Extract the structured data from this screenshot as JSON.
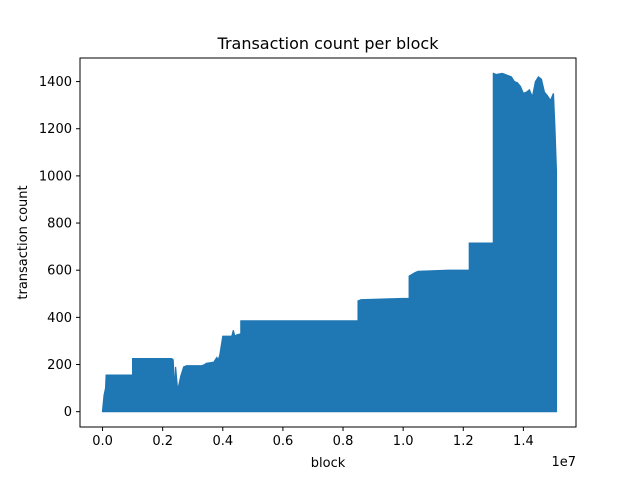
{
  "chart_data": {
    "type": "area",
    "title": "Transaction count per block",
    "xlabel": "block",
    "ylabel": "transaction count",
    "x_offset_text": "1e7",
    "xlim": [
      -0.075,
      1.575
    ],
    "ylim": [
      -65,
      1500
    ],
    "x_ticks": [
      0.0,
      0.2,
      0.4,
      0.6,
      0.8,
      1.0,
      1.2,
      1.4
    ],
    "x_tick_labels": [
      "0.0",
      "0.2",
      "0.4",
      "0.6",
      "0.8",
      "1.0",
      "1.2",
      "1.4"
    ],
    "y_ticks": [
      0,
      200,
      400,
      600,
      800,
      1000,
      1200,
      1400
    ],
    "y_tick_labels": [
      "0",
      "200",
      "400",
      "600",
      "800",
      "1000",
      "1200",
      "1400"
    ],
    "grid": false,
    "legend": "none",
    "series": [
      {
        "color": "#1f77b4",
        "x": [
          0.0,
          0.005,
          0.01,
          0.012,
          0.02,
          0.03,
          0.04,
          0.05,
          0.1,
          0.1,
          0.2,
          0.23,
          0.235,
          0.24,
          0.243,
          0.25,
          0.26,
          0.27,
          0.28,
          0.33,
          0.34,
          0.345,
          0.37,
          0.38,
          0.385,
          0.39,
          0.4,
          0.43,
          0.435,
          0.44,
          0.445,
          0.46,
          0.46,
          0.5,
          0.7,
          0.75,
          0.85,
          0.85,
          0.86,
          1.0,
          1.02,
          1.02,
          1.04,
          1.05,
          1.15,
          1.22,
          1.22,
          1.3,
          1.3,
          1.31,
          1.33,
          1.34,
          1.35,
          1.36,
          1.37,
          1.38,
          1.39,
          1.4,
          1.41,
          1.42,
          1.43,
          1.44,
          1.45,
          1.46,
          1.47,
          1.48,
          1.49,
          1.5,
          1.505,
          1.51,
          1.51
        ],
        "y": [
          5,
          70,
          100,
          155,
          155,
          155,
          155,
          155,
          155,
          225,
          225,
          225,
          220,
          85,
          190,
          90,
          150,
          190,
          195,
          195,
          200,
          205,
          210,
          230,
          220,
          240,
          320,
          320,
          345,
          320,
          325,
          330,
          385,
          385,
          385,
          385,
          385,
          470,
          475,
          480,
          480,
          575,
          590,
          595,
          600,
          600,
          715,
          715,
          1435,
          1430,
          1435,
          1430,
          1425,
          1420,
          1400,
          1395,
          1380,
          1350,
          1355,
          1365,
          1335,
          1400,
          1420,
          1410,
          1355,
          1340,
          1320,
          1350,
          1200,
          1020,
          0
        ]
      }
    ]
  }
}
